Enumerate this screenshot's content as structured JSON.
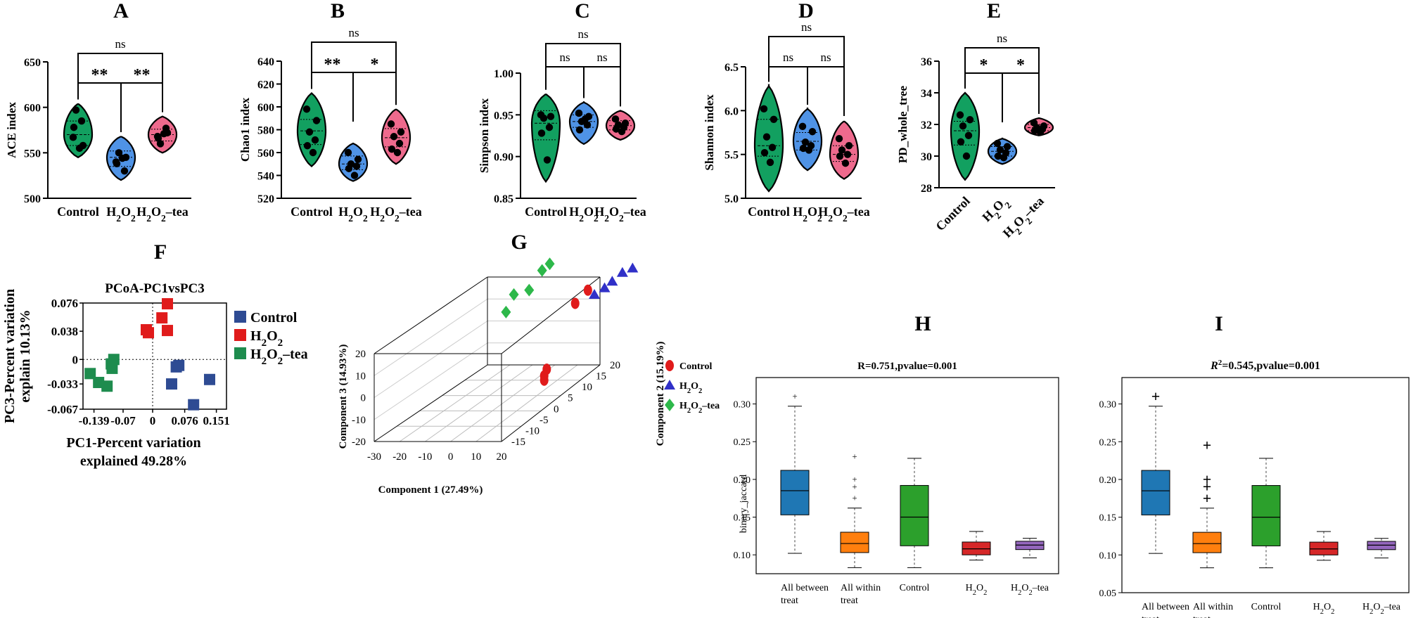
{
  "colors": {
    "control": "#12a060",
    "h2o2": "#4f93e6",
    "tea": "#ee6a8d",
    "pcoa_control": "#2e4b93",
    "pcoa_h2o2": "#e01b1b",
    "pcoa_tea": "#1e8c4e",
    "box_all_between": "#1f77b4",
    "box_all_within": "#ff7f0e",
    "box_control": "#2ca02c",
    "box_h2o2": "#d62728",
    "box_tea": "#9467bd"
  },
  "chart_data": [
    {
      "panel": "A",
      "type": "violin",
      "ylabel": "ACE index",
      "ylim": [
        500,
        650
      ],
      "yticks": [
        "500",
        "550",
        "600",
        "650"
      ],
      "categories": [
        "Control",
        "H2O2",
        "H2O2-tea"
      ],
      "groups": [
        {
          "name": "Control",
          "min": 545,
          "max": 604,
          "q1": 558,
          "median": 570,
          "q3": 585,
          "points": [
            567,
            558,
            597,
            585,
            578,
            555
          ]
        },
        {
          "name": "H2O2",
          "min": 520,
          "max": 568,
          "q1": 535,
          "median": 545,
          "q3": 552,
          "points": [
            540,
            545,
            550,
            530,
            538,
            544
          ]
        },
        {
          "name": "H2O2-tea",
          "min": 550,
          "max": 590,
          "q1": 563,
          "median": 570,
          "q3": 576,
          "points": [
            568,
            572,
            560,
            577,
            566,
            571
          ]
        }
      ],
      "brackets": [
        {
          "from": 0,
          "to": 1,
          "label": "**",
          "level": 1
        },
        {
          "from": 1,
          "to": 2,
          "label": "**",
          "level": 1
        },
        {
          "from": 0,
          "to": 2,
          "label": "ns",
          "level": 2
        }
      ]
    },
    {
      "panel": "B",
      "type": "violin",
      "ylabel": "Chao1 index",
      "ylim": [
        520,
        640
      ],
      "yticks": [
        "520",
        "540",
        "560",
        "580",
        "600",
        "620",
        "640"
      ],
      "categories": [
        "Control",
        "H2O2",
        "H2O2-tea"
      ],
      "groups": [
        {
          "name": "Control",
          "min": 548,
          "max": 612,
          "q1": 567,
          "median": 579,
          "q3": 589,
          "points": [
            598,
            588,
            578,
            571,
            566,
            560
          ]
        },
        {
          "name": "H2O2",
          "min": 535,
          "max": 568,
          "q1": 545,
          "median": 550,
          "q3": 557,
          "points": [
            560,
            554,
            550,
            548,
            546,
            540
          ]
        },
        {
          "name": "H2O2-tea",
          "min": 550,
          "max": 598,
          "q1": 565,
          "median": 573,
          "q3": 581,
          "points": [
            585,
            578,
            574,
            568,
            563,
            560
          ]
        }
      ],
      "brackets": [
        {
          "from": 0,
          "to": 1,
          "label": "**",
          "level": 1
        },
        {
          "from": 1,
          "to": 2,
          "label": "*",
          "level": 1
        },
        {
          "from": 0,
          "to": 2,
          "label": "ns",
          "level": 2
        }
      ]
    },
    {
      "panel": "C",
      "type": "violin",
      "ylabel": "Simpson index",
      "ylim": [
        0.85,
        1.0
      ],
      "yticks": [
        "0.85",
        "0.90",
        "0.95",
        "1.00"
      ],
      "categories": [
        "Control",
        "H2O2",
        "H2O2-tea"
      ],
      "groups": [
        {
          "name": "Control",
          "min": 0.87,
          "max": 0.975,
          "q1": 0.92,
          "median": 0.94,
          "q3": 0.955,
          "points": [
            0.95,
            0.948,
            0.946,
            0.935,
            0.928,
            0.896
          ]
        },
        {
          "name": "H2O2",
          "min": 0.915,
          "max": 0.965,
          "q1": 0.935,
          "median": 0.942,
          "q3": 0.95,
          "points": [
            0.952,
            0.948,
            0.942,
            0.938,
            0.932,
            0.945
          ]
        },
        {
          "name": "H2O2-tea",
          "min": 0.92,
          "max": 0.955,
          "q1": 0.932,
          "median": 0.937,
          "q3": 0.943,
          "points": [
            0.945,
            0.94,
            0.938,
            0.935,
            0.933,
            0.93
          ]
        }
      ],
      "brackets": [
        {
          "from": 0,
          "to": 1,
          "label": "ns",
          "level": 1
        },
        {
          "from": 1,
          "to": 2,
          "label": "ns",
          "level": 1
        },
        {
          "from": 0,
          "to": 2,
          "label": "ns",
          "level": 2
        }
      ]
    },
    {
      "panel": "D",
      "type": "violin",
      "ylabel": "Shannon index",
      "ylim": [
        5.0,
        6.5
      ],
      "yticks": [
        "5.0",
        "5.5",
        "6.0",
        "6.5"
      ],
      "categories": [
        "Control",
        "H2O2",
        "H2O2-tea"
      ],
      "groups": [
        {
          "name": "Control",
          "min": 5.08,
          "max": 6.28,
          "q1": 5.48,
          "median": 5.6,
          "q3": 5.9,
          "points": [
            6.02,
            5.9,
            5.7,
            5.58,
            5.52,
            5.41
          ]
        },
        {
          "name": "H2O2",
          "min": 5.32,
          "max": 6.02,
          "q1": 5.55,
          "median": 5.65,
          "q3": 5.75,
          "points": [
            5.82,
            5.76,
            5.64,
            5.6,
            5.57,
            5.55
          ]
        },
        {
          "name": "H2O2-tea",
          "min": 5.22,
          "max": 5.88,
          "q1": 5.42,
          "median": 5.5,
          "q3": 5.6,
          "points": [
            5.68,
            5.6,
            5.55,
            5.5,
            5.48,
            5.4
          ]
        }
      ],
      "brackets": [
        {
          "from": 0,
          "to": 1,
          "label": "ns",
          "level": 1
        },
        {
          "from": 1,
          "to": 2,
          "label": "ns",
          "level": 1
        },
        {
          "from": 0,
          "to": 2,
          "label": "ns",
          "level": 2
        }
      ]
    },
    {
      "panel": "E",
      "type": "violin",
      "ylabel": "PD_whole_tree",
      "ylim": [
        28,
        36
      ],
      "yticks": [
        "28",
        "30",
        "32",
        "34",
        "36"
      ],
      "categories": [
        "Control",
        "H2O2",
        "H2O2-tea"
      ],
      "groups": [
        {
          "name": "Control",
          "min": 28.5,
          "max": 34.0,
          "q1": 30.7,
          "median": 31.6,
          "q3": 32.2,
          "points": [
            32.6,
            32.3,
            31.9,
            31.3,
            30.9,
            30.0
          ]
        },
        {
          "name": "H2O2",
          "min": 29.5,
          "max": 31.1,
          "q1": 30.0,
          "median": 30.3,
          "q3": 30.6,
          "points": [
            30.8,
            30.6,
            30.4,
            30.2,
            30.0,
            29.9
          ]
        },
        {
          "name": "H2O2-tea",
          "min": 31.3,
          "max": 32.4,
          "q1": 31.6,
          "median": 31.8,
          "q3": 32.0,
          "points": [
            32.1,
            31.9,
            31.8,
            31.7,
            31.6,
            31.5
          ]
        }
      ],
      "brackets": [
        {
          "from": 0,
          "to": 1,
          "label": "*",
          "level": 1
        },
        {
          "from": 1,
          "to": 2,
          "label": "*",
          "level": 1
        },
        {
          "from": 0,
          "to": 2,
          "label": "ns",
          "level": 2
        }
      ]
    },
    {
      "panel": "F",
      "type": "scatter",
      "title": "PCoA-PC1vsPC3",
      "xlabel_line1": "PC1-Percent variation",
      "xlabel_line2": "explained 49.28%",
      "ylabel_line1": "PC3-Percent variation",
      "ylabel_line2": "explain 10.13%",
      "xlim": [
        -0.165,
        0.175
      ],
      "ylim": [
        -0.067,
        0.076
      ],
      "xticks": [
        -0.139,
        -0.07,
        0,
        0.076,
        0.151
      ],
      "xticklabels": [
        "-0.139",
        "-0.07",
        "0",
        "0.076",
        "0.151"
      ],
      "yticks": [
        -0.067,
        -0.033,
        0,
        0.038,
        0.076
      ],
      "yticklabels": [
        "-0.067",
        "-0.033",
        "0",
        "0.038",
        "0.076"
      ],
      "series": [
        {
          "name": "Control",
          "points": [
            [
              0.056,
              -0.01
            ],
            [
              0.062,
              -0.008
            ],
            [
              0.045,
              -0.033
            ],
            [
              0.135,
              -0.027
            ],
            [
              0.097,
              -0.061
            ]
          ]
        },
        {
          "name": "H2O2",
          "points": [
            [
              -0.015,
              0.04
            ],
            [
              -0.01,
              0.036
            ],
            [
              0.035,
              0.075
            ],
            [
              0.022,
              0.056
            ],
            [
              0.035,
              0.039
            ]
          ]
        },
        {
          "name": "H2O2-tea",
          "points": [
            [
              -0.092,
              0.0
            ],
            [
              -0.096,
              -0.012
            ],
            [
              -0.148,
              -0.019
            ],
            [
              -0.128,
              -0.031
            ],
            [
              -0.108,
              -0.036
            ],
            [
              -0.098,
              -0.006
            ]
          ]
        }
      ]
    },
    {
      "panel": "G",
      "type": "scatter3d",
      "xlabel": "Component 1  (27.49%)",
      "ylabel": "Component 2  (15.19%)",
      "zlabel": "Component 3  (14.93%)",
      "xticks": [
        "-30",
        "-20",
        "-10",
        "0",
        "10",
        "20"
      ],
      "yticks": [
        "-15",
        "-10",
        "-5",
        "0",
        "5",
        "10",
        "15",
        "20"
      ],
      "zticks": [
        "-20",
        "-10",
        "0",
        "10",
        "20"
      ],
      "series": [
        {
          "name": "Control",
          "points": [
            [
              6,
              10,
              -12
            ],
            [
              5,
              10,
              -15
            ],
            [
              5,
              10,
              -17
            ],
            [
              12,
              18,
              16
            ],
            [
              7,
              18,
              10
            ]
          ]
        },
        {
          "name": "H2O2",
          "points": [
            [
              12,
              20,
              12
            ],
            [
              16,
              20,
              15
            ],
            [
              19,
              20,
              18
            ],
            [
              23,
              20,
              22
            ],
            [
              27,
              20,
              24
            ]
          ]
        },
        {
          "name": "H2O2-tea",
          "points": [
            [
              -6,
              18,
              25
            ],
            [
              -3,
              18,
              28
            ],
            [
              -12,
              14,
              18
            ],
            [
              -6,
              14,
              20
            ],
            [
              -10,
              10,
              14
            ]
          ]
        }
      ]
    },
    {
      "panel": "H",
      "type": "boxplot",
      "title": "R=0.751,pvalue=0.001",
      "ylabel": "binary_jaccard",
      "ylim": [
        0.075,
        0.335
      ],
      "yticks": [
        0.1,
        0.15,
        0.2,
        0.25,
        0.3
      ],
      "yticklabels": [
        "0.10",
        "0.15",
        "0.20",
        "0.25",
        "0.30"
      ],
      "categories": [
        "All between treat",
        "All within treat",
        "Control",
        "H2O2",
        "H2O2-tea"
      ],
      "boxes": [
        {
          "whislo": 0.102,
          "q1": 0.153,
          "med": 0.185,
          "q3": 0.212,
          "whishi": 0.297,
          "fliers": [
            0.31
          ]
        },
        {
          "whislo": 0.083,
          "q1": 0.103,
          "med": 0.115,
          "q3": 0.13,
          "whishi": 0.162,
          "fliers": [
            0.175,
            0.19,
            0.2,
            0.23
          ]
        },
        {
          "whislo": 0.083,
          "q1": 0.112,
          "med": 0.15,
          "q3": 0.192,
          "whishi": 0.228,
          "fliers": []
        },
        {
          "whislo": 0.093,
          "q1": 0.1,
          "med": 0.108,
          "q3": 0.117,
          "whishi": 0.131,
          "fliers": []
        },
        {
          "whislo": 0.096,
          "q1": 0.107,
          "med": 0.113,
          "q3": 0.118,
          "whishi": 0.122,
          "fliers": []
        }
      ]
    },
    {
      "panel": "I",
      "type": "boxplot",
      "title": "=0.545,pvalue=0.001",
      "title_prefix": "R",
      "title_sup": "2",
      "ylabel": "",
      "ylim": [
        0.05,
        0.335
      ],
      "yticks": [
        0.05,
        0.1,
        0.15,
        0.2,
        0.25,
        0.3
      ],
      "yticklabels": [
        "0.05",
        "0.10",
        "0.15",
        "0.20",
        "0.25",
        "0.30"
      ],
      "categories": [
        "All between treat",
        "All within treat",
        "Control",
        "H2O2",
        "H2O2-tea"
      ],
      "boxes": [
        {
          "whislo": 0.102,
          "q1": 0.153,
          "med": 0.185,
          "q3": 0.212,
          "whishi": 0.297,
          "fliers": [
            0.31
          ]
        },
        {
          "whislo": 0.083,
          "q1": 0.103,
          "med": 0.115,
          "q3": 0.13,
          "whishi": 0.162,
          "fliers": [
            0.175,
            0.19,
            0.2,
            0.245
          ]
        },
        {
          "whislo": 0.083,
          "q1": 0.112,
          "med": 0.15,
          "q3": 0.192,
          "whishi": 0.228,
          "fliers": []
        },
        {
          "whislo": 0.093,
          "q1": 0.1,
          "med": 0.108,
          "q3": 0.117,
          "whishi": 0.131,
          "fliers": []
        },
        {
          "whislo": 0.096,
          "q1": 0.107,
          "med": 0.113,
          "q3": 0.118,
          "whishi": 0.122,
          "fliers": []
        }
      ]
    }
  ]
}
